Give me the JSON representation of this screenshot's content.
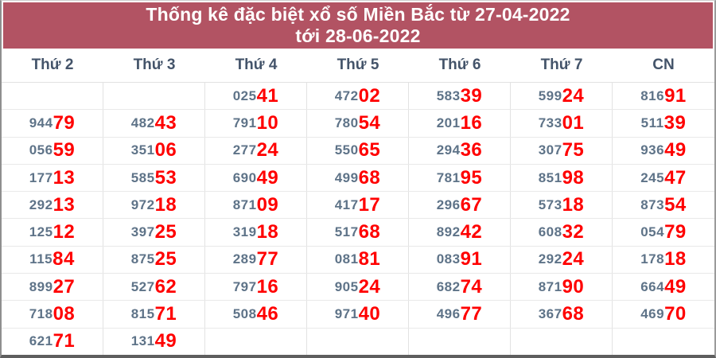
{
  "title": {
    "full": "Thống kê đặc biệt xổ số Miền Bắc từ 27-04-2022 tới 28-06-2022",
    "line1": "Thống kê đặc biệt xổ số Miền Bắc từ 27-04-2022",
    "line2": "tới 28-06-2022"
  },
  "colors": {
    "title_bar_bg": "#b25363",
    "title_text": "#ffffff",
    "day_header_text": "#44546a",
    "digit_prefix": "#5e7388",
    "digit_suffix": "#ff0000",
    "grid_line": "#e2e2e2",
    "outer_border": "#8f8f8f"
  },
  "table": {
    "headers": [
      "Thứ 2",
      "Thứ 3",
      "Thứ 4",
      "Thứ 5",
      "Thứ 6",
      "Thứ 7",
      "CN"
    ],
    "highlight_last_digits": 2,
    "rows": [
      [
        "",
        "",
        "02541",
        "47202",
        "58339",
        "59924",
        "81691"
      ],
      [
        "94479",
        "48243",
        "79110",
        "78054",
        "20116",
        "73301",
        "51139"
      ],
      [
        "05659",
        "35106",
        "27724",
        "55065",
        "29436",
        "30775",
        "93649"
      ],
      [
        "17713",
        "58553",
        "69049",
        "49968",
        "78195",
        "85198",
        "24547"
      ],
      [
        "29213",
        "97218",
        "87109",
        "41717",
        "29667",
        "57318",
        "87354"
      ],
      [
        "12512",
        "39725",
        "31918",
        "51768",
        "89242",
        "60832",
        "05479"
      ],
      [
        "11584",
        "87525",
        "28977",
        "08181",
        "08391",
        "29224",
        "17818"
      ],
      [
        "89927",
        "52762",
        "79716",
        "90524",
        "68274",
        "87190",
        "66449"
      ],
      [
        "71808",
        "81571",
        "50846",
        "97140",
        "49677",
        "36768",
        "46970"
      ],
      [
        "62171",
        "13149",
        "",
        "",
        "",
        "",
        ""
      ]
    ]
  }
}
